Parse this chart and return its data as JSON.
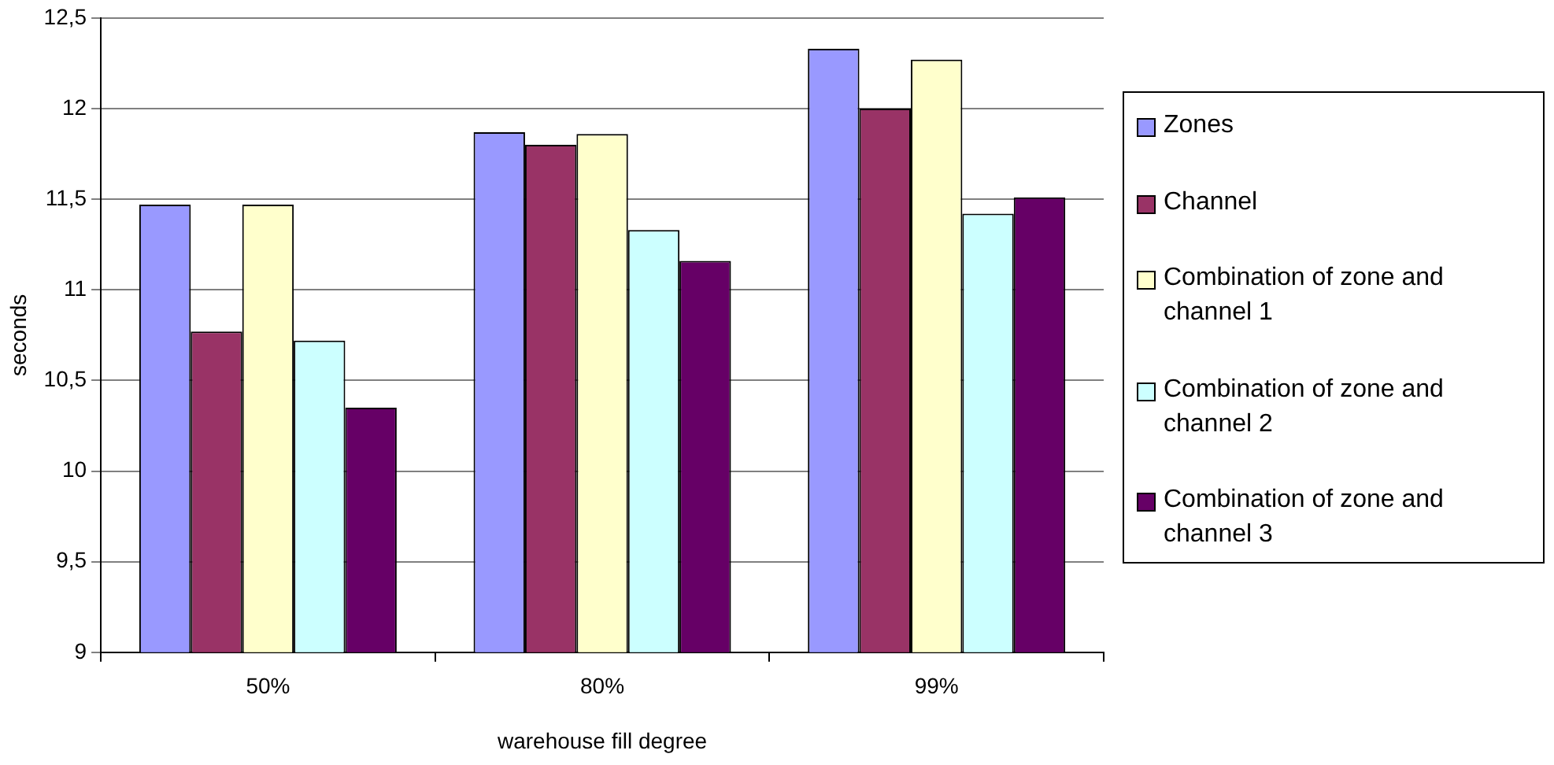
{
  "chart_data": {
    "type": "bar",
    "xlabel": "warehouse fill degree",
    "ylabel": "seconds",
    "categories": [
      "50%",
      "80%",
      "99%"
    ],
    "series": [
      {
        "name": "Zones",
        "color": "#9999ff",
        "values": [
          11.47,
          11.87,
          12.33
        ]
      },
      {
        "name": "Channel",
        "color": "#993366",
        "values": [
          10.77,
          11.8,
          12.0
        ]
      },
      {
        "name": "Combination of zone and channel 1",
        "color": "#ffffcc",
        "values": [
          11.47,
          11.86,
          12.27
        ]
      },
      {
        "name": "Combination of zone and channel 2",
        "color": "#ccffff",
        "values": [
          10.72,
          11.33,
          11.42
        ]
      },
      {
        "name": "Combination of zone and channel 3",
        "color": "#660066",
        "values": [
          10.35,
          11.16,
          11.51
        ]
      }
    ],
    "ylim": [
      9,
      12.5
    ],
    "yticks": [
      9,
      {
        "value": 9.5,
        "label": "9,5"
      },
      10,
      {
        "value": 10.5,
        "label": "10,5"
      },
      11,
      {
        "value": 11.5,
        "label": "11,5"
      },
      12,
      {
        "value": 12.5,
        "label": "12,5"
      }
    ],
    "grid": "y",
    "legend": "right"
  }
}
